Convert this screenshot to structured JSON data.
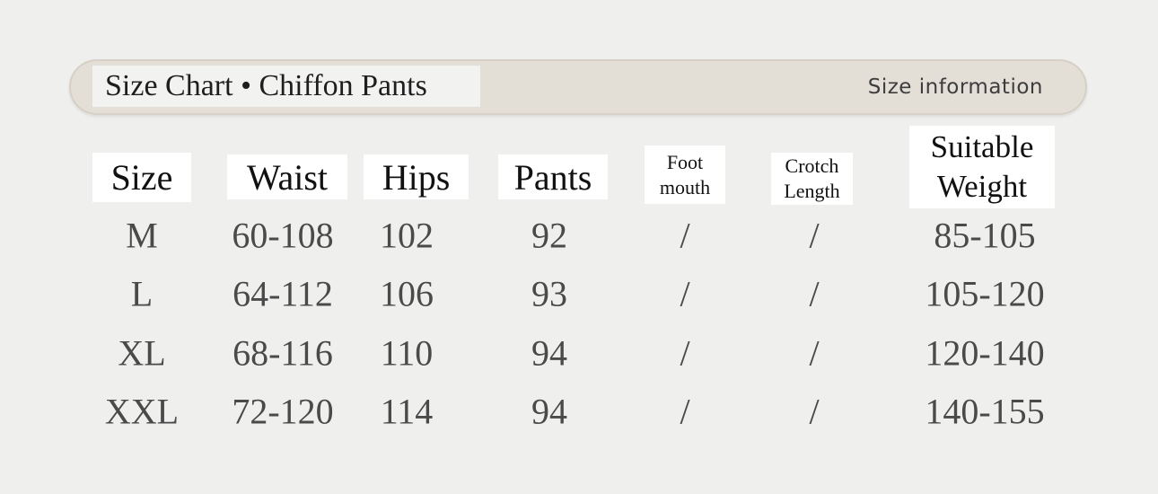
{
  "header": {
    "title": "Size Chart • Chiffon Pants",
    "subtitle": "Size information"
  },
  "columns": [
    "Size",
    "Waist",
    "Hips",
    "Pants",
    "Foot mouth",
    "Crotch Length",
    "Suitable Weight"
  ],
  "rows": [
    [
      "M",
      "60-108",
      "102",
      "92",
      "/",
      "/",
      "85-105"
    ],
    [
      "L",
      "64-112",
      "106",
      "93",
      "/",
      "/",
      "105-120"
    ],
    [
      "XL",
      "68-116",
      "110",
      "94",
      "/",
      "/",
      "120-140"
    ],
    [
      "XXL",
      "72-120",
      "114",
      "94",
      "/",
      "/",
      "140-155"
    ]
  ]
}
